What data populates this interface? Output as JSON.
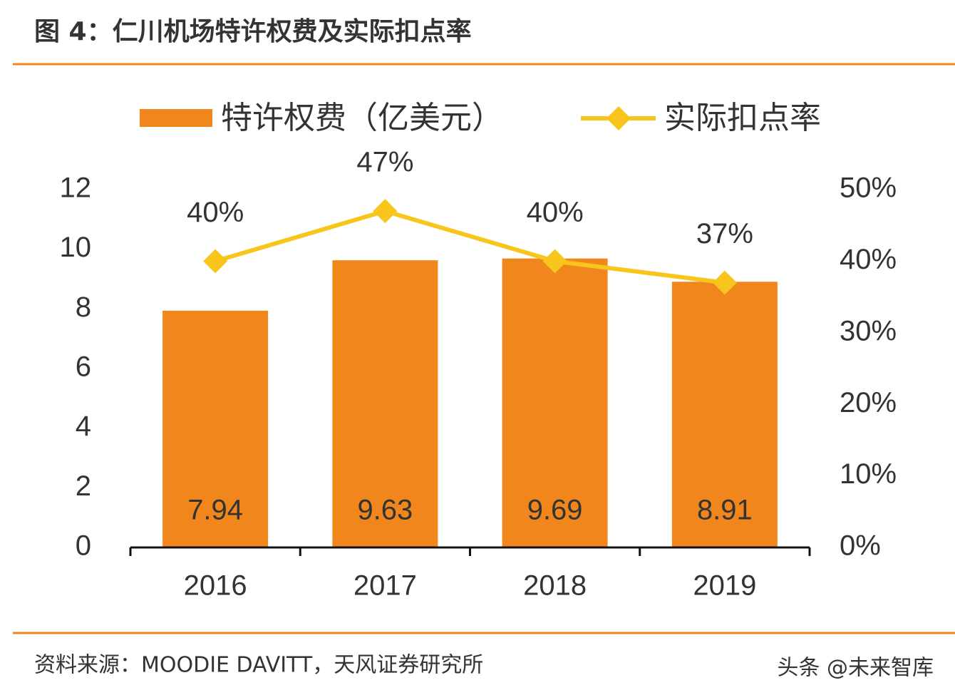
{
  "title": "图 4：仁川机场特许权费及实际扣点率",
  "source": "资料来源：MOODIE DAVITT，天风证券研究所",
  "watermark": "头条 @未来智库",
  "chart_data": {
    "type": "bar",
    "categories": [
      "2016",
      "2017",
      "2018",
      "2019"
    ],
    "series": [
      {
        "name": "特许权费（亿美元）",
        "type": "bar",
        "color": "#f0861c",
        "values": [
          7.94,
          9.63,
          9.69,
          8.91
        ]
      },
      {
        "name": "实际扣点率",
        "type": "line",
        "axis": "y2",
        "color": "#f8c51c",
        "values": [
          40,
          47,
          40,
          37
        ],
        "value_labels": [
          "40%",
          "47%",
          "40%",
          "37%"
        ]
      }
    ],
    "ylim": [
      0,
      12
    ],
    "yticks": [
      0,
      2,
      4,
      6,
      8,
      10,
      12
    ],
    "y2lim": [
      0,
      50
    ],
    "y2ticks": [
      {
        "value": 0,
        "label": "0%"
      },
      {
        "value": 10,
        "label": "10%"
      },
      {
        "value": 20,
        "label": "20%"
      },
      {
        "value": 30,
        "label": "30%"
      },
      {
        "value": 40,
        "label": "40%"
      },
      {
        "value": 50,
        "label": "50%"
      }
    ],
    "grid": false,
    "legend": "top"
  }
}
